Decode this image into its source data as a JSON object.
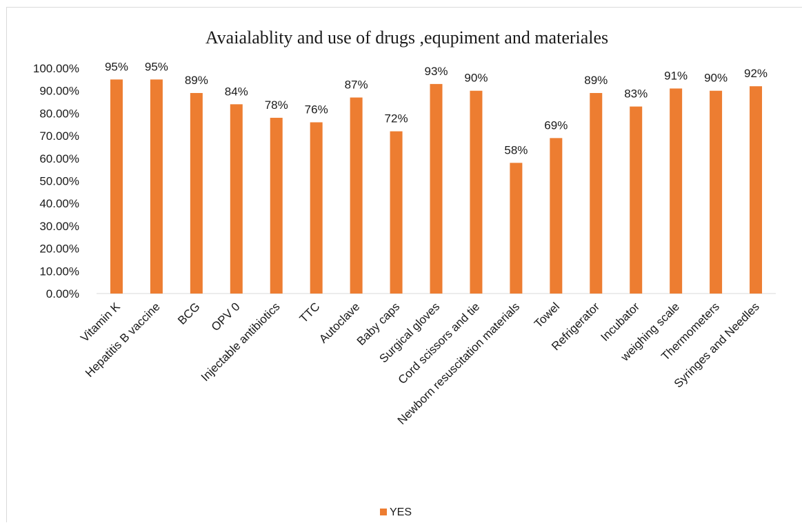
{
  "chart_data": {
    "type": "bar",
    "title": "Avaialablity and use of drugs ,equpiment and materiales",
    "xlabel": "",
    "ylabel": "",
    "ylim": [
      0,
      100
    ],
    "y_ticks": [
      "0.00%",
      "10.00%",
      "20.00%",
      "30.00%",
      "40.00%",
      "50.00%",
      "60.00%",
      "70.00%",
      "80.00%",
      "90.00%",
      "100.00%"
    ],
    "grid": false,
    "legend_position": "bottom",
    "categories": [
      "Vitamin K",
      "Hepatitis B vaccine",
      "BCG",
      "OPV 0",
      "Injectable antibiotics",
      "TTC",
      "Autoclave",
      "Baby caps",
      "Surgical gloves",
      "Cord scissors and tie",
      "Newborn resuscitation materials",
      "Towel",
      "Refrigerator",
      "Incubator",
      "weighing scale",
      "Thermometers",
      "Syringes and Needles"
    ],
    "series": [
      {
        "name": "YES",
        "color": "#ED7D31",
        "values": [
          95,
          95,
          89,
          84,
          78,
          76,
          87,
          72,
          93,
          90,
          58,
          69,
          89,
          83,
          91,
          90,
          92
        ],
        "labels": [
          "95%",
          "95%",
          "89%",
          "84%",
          "78%",
          "76%",
          "87%",
          "72%",
          "93%",
          "90%",
          "58%",
          "69%",
          "89%",
          "83%",
          "91%",
          "90%",
          "92%"
        ]
      }
    ]
  }
}
